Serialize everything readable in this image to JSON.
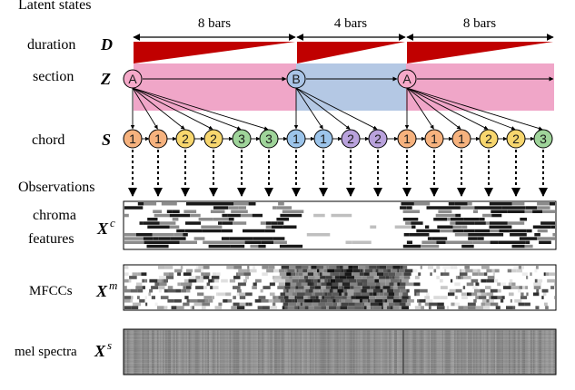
{
  "headings": {
    "latent": "Latent states",
    "observations": "Observations"
  },
  "bars": [
    {
      "label": "8 bars"
    },
    {
      "label": "4 bars"
    },
    {
      "label": "8 bars"
    }
  ],
  "rows": {
    "duration": {
      "label": "duration",
      "var": "D"
    },
    "section": {
      "label": "section",
      "var": "Z"
    },
    "chord": {
      "label": "chord",
      "var": "S"
    },
    "chroma": {
      "label_line1": "chroma",
      "label_line2": "features",
      "var": "X",
      "sup": "c"
    },
    "mfcc": {
      "label": "MFCCs",
      "var": "X",
      "sup": "m"
    },
    "mel": {
      "label": "mel spectra",
      "var": "X",
      "sup": "s"
    }
  },
  "sections": [
    {
      "name": "A",
      "color": "#f0a6c8",
      "node_fill": "#f5a9c9"
    },
    {
      "name": "B",
      "color": "#b4c8e4",
      "node_fill": "#a9c4e6"
    },
    {
      "name": "A",
      "color": "#f0a6c8",
      "node_fill": "#f5a9c9"
    }
  ],
  "chords": [
    {
      "segment": 0,
      "items": [
        "1",
        "1",
        "2",
        "2",
        "3",
        "3"
      ]
    },
    {
      "segment": 1,
      "items": [
        "1",
        "1",
        "2",
        "2"
      ]
    },
    {
      "segment": 2,
      "items": [
        "1",
        "1",
        "1",
        "2",
        "2",
        "3"
      ]
    }
  ],
  "chord_colors": {
    "1": "#f6b27e",
    "2": "#f7d66e",
    "3": "#9fd49a",
    "B1": "#9cc4ea",
    "B2": "#b9a2dc"
  },
  "colors": {
    "duration": "#c00000",
    "line": "#000000"
  }
}
